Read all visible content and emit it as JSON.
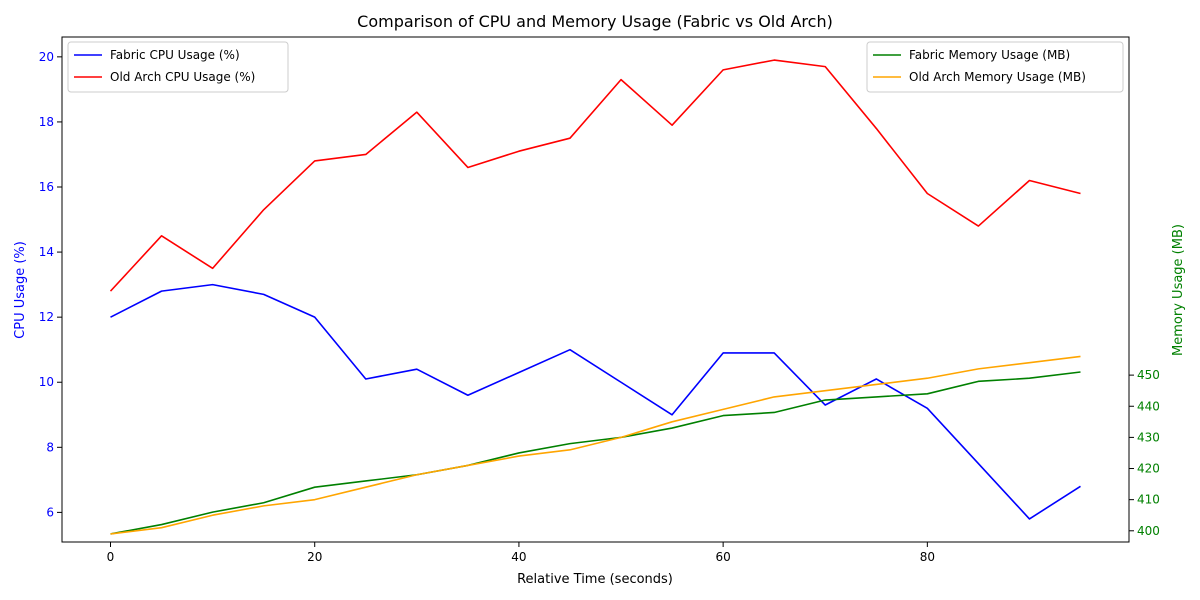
{
  "chart_data": {
    "type": "line",
    "title": "Comparison of CPU and Memory Usage (Fabric vs Old Arch)",
    "xlabel": "Relative Time (seconds)",
    "ylabel_left": "CPU Usage (%)",
    "ylabel_right": "Memory Usage (MB)",
    "xlim": [
      -4.75,
      99.75
    ],
    "ylim_left": [
      5.09,
      20.61
    ],
    "ylim_right": [
      396.4,
      558.6
    ],
    "x_ticks": [
      0,
      20,
      40,
      60,
      80
    ],
    "y_ticks_left": [
      6,
      8,
      10,
      12,
      14,
      16,
      18,
      20
    ],
    "y_ticks_right": [
      400,
      410,
      420,
      430,
      440,
      450
    ],
    "grid": false,
    "legend_left_placement": "top-left",
    "legend_right_placement": "top-right",
    "x": [
      0,
      5,
      10,
      15,
      20,
      25,
      30,
      35,
      40,
      45,
      50,
      55,
      60,
      65,
      70,
      75,
      80,
      85,
      90,
      95
    ],
    "series_left": [
      {
        "name": "Fabric CPU Usage (%)",
        "color": "#0000ff",
        "values": [
          12.0,
          12.8,
          13.0,
          12.7,
          12.0,
          10.1,
          10.4,
          9.6,
          10.3,
          11.0,
          10.0,
          9.0,
          10.9,
          10.9,
          9.3,
          10.1,
          9.2,
          7.5,
          5.8,
          6.8
        ]
      },
      {
        "name": "Old Arch CPU Usage (%)",
        "color": "#ff0000",
        "values": [
          12.8,
          14.5,
          13.5,
          15.3,
          16.8,
          17.0,
          18.3,
          16.6,
          17.1,
          17.5,
          19.3,
          17.9,
          19.6,
          19.9,
          19.7,
          17.8,
          15.8,
          14.8,
          16.2,
          15.8
        ]
      }
    ],
    "series_right": [
      {
        "name": "Fabric Memory Usage (MB)",
        "color": "#008000",
        "values": [
          399,
          402,
          406,
          409,
          414,
          416,
          418,
          421,
          425,
          428,
          430,
          433,
          437,
          438,
          442,
          443,
          444,
          448,
          449,
          451
        ]
      },
      {
        "name": "Old Arch Memory Usage (MB)",
        "color": "#ffa500",
        "values": [
          399,
          401,
          405,
          408,
          410,
          414,
          418,
          421,
          424,
          426,
          430,
          435,
          439,
          443,
          445,
          447,
          449,
          452,
          454,
          456
        ]
      }
    ],
    "left_axis_color": "#0000ff",
    "right_axis_color": "#008000"
  }
}
